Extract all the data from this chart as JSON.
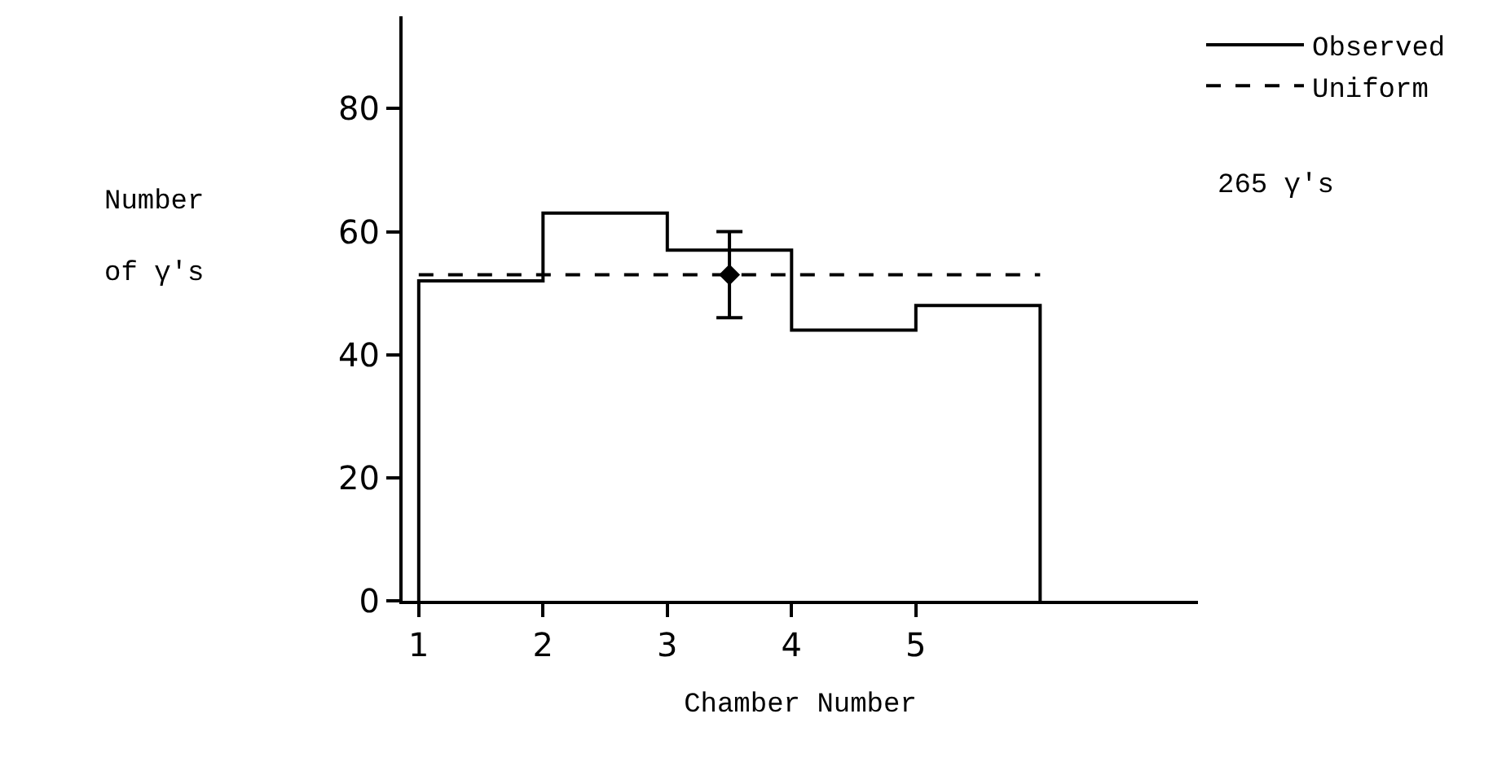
{
  "chart_data": {
    "type": "histogram",
    "xlabel": "Chamber Number",
    "ylabel": "Number of γ's",
    "bins": [
      1,
      2,
      3,
      4,
      5,
      6
    ],
    "series": [
      {
        "name": "Observed",
        "color": "#000000",
        "values": [
          52,
          63,
          57,
          44,
          48
        ],
        "line_style": "solid"
      },
      {
        "name": "Uniform",
        "type": "line",
        "color": "#000000",
        "x": [
          1,
          6
        ],
        "values": [
          53,
          53
        ],
        "line_style": "dashed"
      },
      {
        "type": "scatter",
        "color": "#000000",
        "x": [
          3.5
        ],
        "values": [
          53
        ],
        "errors": [
          [
            46,
            60
          ]
        ],
        "marker": "diamond"
      }
    ],
    "annotations": [
      "265 γ's"
    ],
    "xlim": [
      0.87,
      7.27
    ],
    "ylim": [
      0,
      95
    ],
    "xticks": [
      1,
      2,
      3,
      4,
      5
    ],
    "yticks": [
      0,
      20,
      40,
      60,
      80
    ],
    "legend": "top right"
  }
}
